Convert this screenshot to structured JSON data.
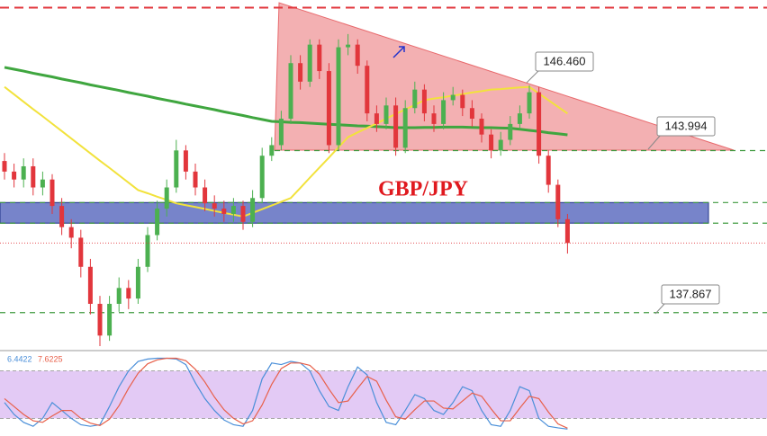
{
  "chart_data": [
    {
      "type": "candlestick",
      "title": "GBP/JPY",
      "ylim": [
        136.5,
        149.5
      ],
      "up_color": "#4cb050",
      "down_color": "#e2363c",
      "open": [
        143.6,
        143.2,
        142.9,
        143.4,
        142.6,
        142.9,
        141.9,
        141.1,
        140.7,
        139.6,
        138.2,
        137.0,
        138.2,
        138.8,
        138.4,
        139.6,
        140.8,
        141.8,
        142.6,
        144.0,
        143.2,
        142.6,
        142.0,
        141.8,
        141.6,
        141.9,
        141.3,
        142.2,
        143.8,
        144.2,
        145.2,
        147.3,
        146.6,
        148.0,
        147.0,
        144.2,
        147.9,
        148.0,
        147.2,
        145.4,
        145.0,
        145.7,
        144.1,
        145.6,
        146.3,
        145.4,
        145.0,
        145.9,
        146.1,
        145.6,
        145.2,
        144.6,
        144.0,
        144.4,
        145.0,
        145.4,
        146.2,
        143.8,
        142.7,
        141.4
      ],
      "high": [
        143.9,
        143.5,
        143.7,
        143.7,
        143.2,
        143.1,
        142.2,
        141.4,
        141.0,
        139.9,
        138.5,
        138.5,
        139.2,
        139.1,
        139.9,
        141.1,
        142.1,
        142.9,
        144.4,
        144.2,
        143.5,
        142.9,
        142.3,
        142.1,
        142.2,
        142.1,
        142.5,
        144.1,
        144.5,
        145.5,
        147.6,
        147.6,
        148.2,
        148.2,
        147.3,
        148.2,
        148.4,
        148.2,
        147.4,
        145.7,
        146.0,
        146.0,
        145.9,
        146.6,
        146.5,
        145.7,
        146.2,
        146.4,
        146.3,
        145.9,
        145.4,
        144.8,
        144.7,
        145.3,
        145.7,
        146.46,
        146.4,
        144.0,
        142.9,
        141.6
      ],
      "low": [
        142.9,
        142.6,
        142.6,
        142.3,
        142.3,
        141.6,
        140.8,
        140.3,
        139.2,
        137.8,
        136.6,
        136.8,
        137.9,
        138.0,
        138.2,
        139.4,
        140.6,
        141.5,
        142.4,
        142.9,
        142.3,
        141.7,
        141.5,
        141.3,
        141.3,
        141.0,
        141.1,
        142.0,
        143.6,
        144.0,
        145.0,
        146.3,
        146.4,
        146.7,
        143.9,
        144.0,
        147.6,
        146.9,
        145.1,
        144.7,
        144.8,
        143.8,
        143.9,
        145.4,
        145.1,
        144.7,
        144.8,
        145.7,
        145.3,
        144.9,
        144.3,
        143.7,
        143.8,
        144.2,
        144.8,
        145.2,
        143.5,
        142.4,
        141.1,
        140.1
      ],
      "close": [
        143.2,
        142.9,
        143.4,
        142.6,
        142.9,
        141.9,
        141.1,
        140.7,
        139.6,
        138.2,
        137.0,
        138.2,
        138.8,
        138.4,
        139.6,
        140.8,
        141.8,
        142.6,
        144.0,
        143.2,
        142.6,
        142.0,
        141.8,
        141.6,
        141.9,
        141.3,
        142.2,
        143.8,
        144.2,
        145.2,
        147.3,
        146.6,
        148.0,
        147.0,
        144.2,
        147.9,
        148.0,
        147.2,
        145.4,
        145.0,
        145.7,
        144.1,
        145.6,
        146.3,
        145.4,
        145.0,
        145.9,
        146.1,
        145.6,
        145.2,
        144.6,
        144.0,
        144.4,
        145.0,
        145.4,
        146.2,
        143.8,
        142.7,
        141.4,
        140.5
      ],
      "lines": [
        {
          "color": "#3fa63f",
          "values": [
            147.14,
            147.07,
            147.0,
            146.92,
            146.85,
            146.78,
            146.7,
            146.63,
            146.56,
            146.48,
            146.41,
            146.34,
            146.27,
            146.19,
            146.12,
            146.05,
            145.97,
            145.9,
            145.83,
            145.75,
            145.68,
            145.61,
            145.54,
            145.46,
            145.39,
            145.32,
            145.24,
            145.17,
            145.1,
            145.08,
            145.06,
            145.05,
            145.03,
            145.01,
            144.99,
            144.97,
            144.95,
            144.93,
            144.92,
            144.9,
            144.88,
            144.86,
            144.86,
            144.86,
            144.87,
            144.87,
            144.88,
            144.88,
            144.88,
            144.87,
            144.86,
            144.86,
            144.85,
            144.84,
            144.8,
            144.76,
            144.72,
            144.67,
            144.63,
            144.59
          ]
        },
        {
          "color": "#f2e23c",
          "values": [
            146.4,
            146.12,
            145.84,
            145.56,
            145.29,
            145.01,
            144.73,
            144.45,
            144.17,
            143.89,
            143.61,
            143.34,
            143.06,
            142.78,
            142.5,
            142.38,
            142.25,
            142.13,
            142.0,
            141.93,
            141.86,
            141.79,
            141.71,
            141.64,
            141.57,
            141.5,
            141.64,
            141.78,
            141.92,
            142.06,
            142.2,
            142.58,
            142.97,
            143.35,
            143.73,
            144.12,
            144.5,
            144.68,
            144.85,
            145.02,
            145.2,
            145.38,
            145.55,
            145.72,
            145.9,
            145.96,
            146.01,
            146.07,
            146.13,
            146.19,
            146.24,
            146.3,
            146.32,
            146.35,
            146.38,
            146.4,
            146.15,
            145.9,
            145.65,
            145.4
          ]
        }
      ],
      "resistance": {
        "value": 149.4,
        "color": "#e2363c"
      },
      "zone": {
        "range": [
          141.25,
          142.03
        ],
        "color": "#4a5bb8"
      },
      "levels": [
        {
          "value": 146.46,
          "label": "146.460"
        },
        {
          "value": 143.994,
          "label": "143.994"
        },
        {
          "value": 137.867,
          "label": "137.867"
        }
      ],
      "level_color": "#3f9a3f"
    },
    {
      "type": "line",
      "ylim": [
        0,
        100
      ],
      "bands": [
        20,
        80
      ],
      "series": [
        {
          "color": "#4a8fd9",
          "values": [
            40,
            25,
            15,
            10,
            20,
            40,
            30,
            20,
            12,
            10,
            12,
            35,
            60,
            80,
            92,
            95,
            96,
            96,
            95,
            88,
            65,
            45,
            30,
            18,
            12,
            10,
            30,
            70,
            90,
            88,
            92,
            90,
            80,
            55,
            35,
            30,
            60,
            85,
            75,
            40,
            15,
            12,
            30,
            50,
            45,
            30,
            25,
            40,
            60,
            55,
            30,
            12,
            10,
            30,
            60,
            55,
            20,
            10,
            8,
            6.4422
          ]
        },
        {
          "color": "#e8604a",
          "values": [
            45,
            35,
            25,
            17,
            15,
            23,
            30,
            30,
            20,
            14,
            11,
            19,
            36,
            58,
            77,
            89,
            94,
            96,
            96,
            93,
            82,
            66,
            47,
            31,
            20,
            13,
            17,
            37,
            63,
            83,
            90,
            90,
            87,
            76,
            57,
            40,
            42,
            58,
            73,
            67,
            43,
            22,
            19,
            31,
            42,
            42,
            33,
            32,
            42,
            52,
            48,
            32,
            17,
            17,
            33,
            48,
            45,
            28,
            13,
            7.6225
          ]
        }
      ]
    }
  ]
}
